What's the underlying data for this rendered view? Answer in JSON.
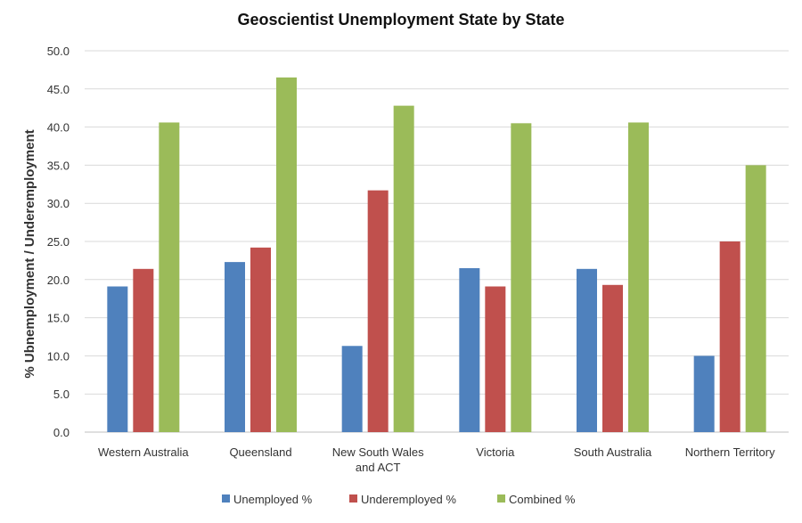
{
  "chart_data": {
    "type": "bar",
    "title": "Geoscientist Unemployment State by State",
    "xlabel": "",
    "ylabel": "% Ubnemployment / Underemployment",
    "ylim": [
      0,
      50
    ],
    "yticks": [
      "0.0",
      "5.0",
      "10.0",
      "15.0",
      "20.0",
      "25.0",
      "30.0",
      "35.0",
      "40.0",
      "45.0",
      "50.0"
    ],
    "grid": true,
    "legend_position": "bottom",
    "categories": [
      [
        "Western Australia"
      ],
      [
        "Queensland"
      ],
      [
        "New South Wales",
        "and ACT"
      ],
      [
        "Victoria"
      ],
      [
        "South Australia"
      ],
      [
        "Northern Territory"
      ]
    ],
    "series": [
      {
        "name": "Unemployed %",
        "color": "#4f81bd",
        "values": [
          19.1,
          22.3,
          11.3,
          21.5,
          21.4,
          10.0
        ]
      },
      {
        "name": "Underemployed %",
        "color": "#c0504d",
        "values": [
          21.4,
          24.2,
          31.7,
          19.1,
          19.3,
          25.0
        ]
      },
      {
        "name": "Combined %",
        "color": "#9bbb59",
        "values": [
          40.6,
          46.5,
          42.8,
          40.5,
          40.6,
          35.0
        ]
      }
    ]
  }
}
